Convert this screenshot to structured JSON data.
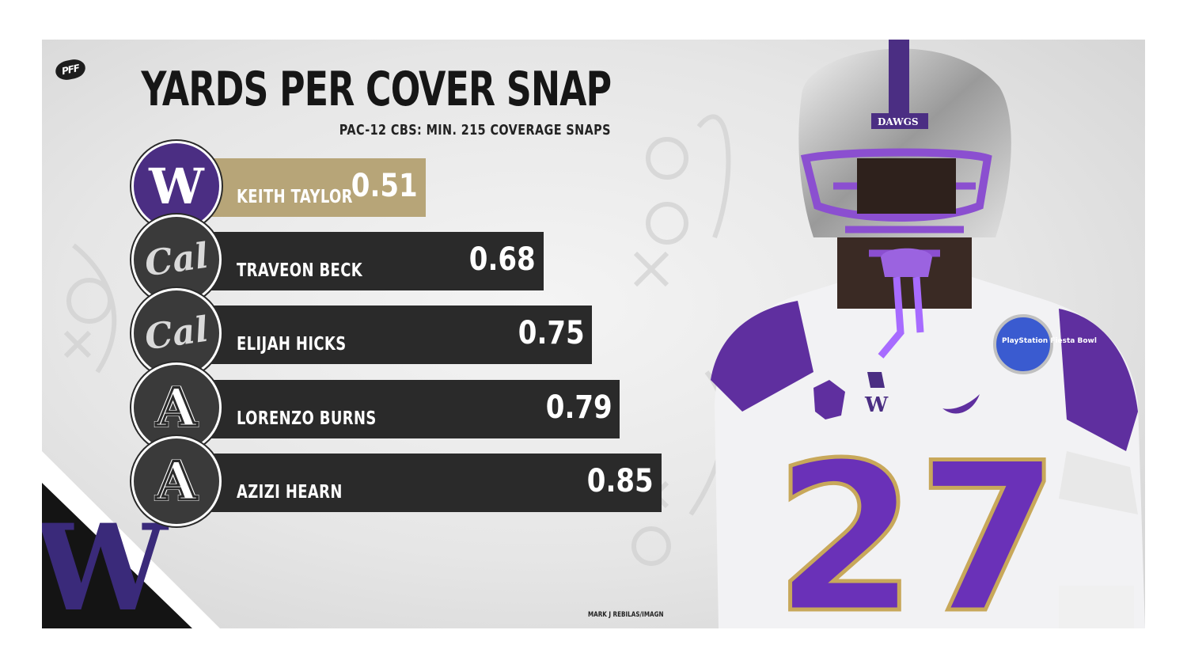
{
  "brand": {
    "logo_text": "PFF",
    "accent": "#b7a578",
    "bar_color": "#2a2a2a",
    "uw_purple": "#4b2e83"
  },
  "chart_data": {
    "type": "bar",
    "orientation": "horizontal",
    "title": "YARDS PER COVER SNAP",
    "subtitle": "PAC-12 CBS: MIN. 215 COVERAGE SNAPS",
    "categories": [
      "KEITH TAYLOR",
      "TRAVEON BECK",
      "ELIJAH HICKS",
      "LORENZO BURNS",
      "AZIZI HEARN"
    ],
    "values": [
      "0.51",
      "0.68",
      "0.75",
      "0.79",
      "0.85"
    ],
    "teams": [
      "W",
      "Cal",
      "Cal",
      "A",
      "A"
    ],
    "team_logos": [
      "washington-logo-icon",
      "cal-logo-icon",
      "cal-logo-icon",
      "arizona-logo-icon",
      "arizona-logo-icon"
    ],
    "highlight_index": 0,
    "grid": false,
    "legend": "none"
  },
  "photo": {
    "helmet_text": "DAWGS",
    "jersey_number": "27",
    "bowl_patch": "PlayStation Fiesta Bowl",
    "credit": "MARK J REBILAS/IMAGN"
  }
}
